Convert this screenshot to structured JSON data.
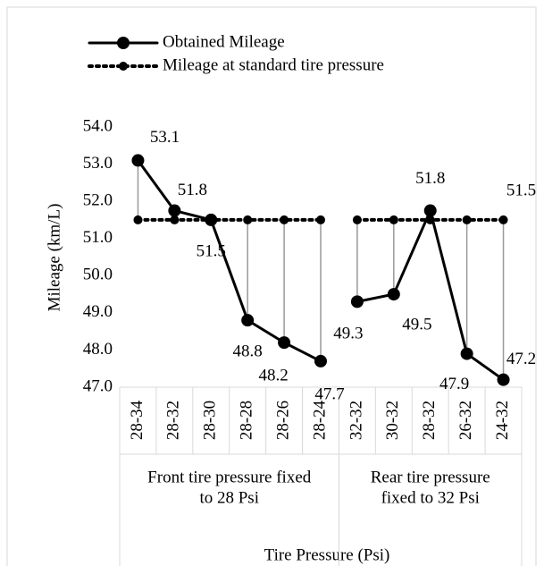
{
  "chart_data": {
    "type": "line",
    "y_label": "Mileage (km/L)",
    "x_label": "Tire Pressure (Psi)",
    "categories": [
      "28-34",
      "28-32",
      "28-30",
      "28-28",
      "28-26",
      "28-24",
      "32-32",
      "30-32",
      "28-32",
      "26-32",
      "24-32"
    ],
    "groups": [
      {
        "label": [
          "Front tire pressure  fixed",
          "to 28 Psi"
        ],
        "size": 6
      },
      {
        "label": [
          "Rear tire pressure",
          "fixed to 32 Psi"
        ],
        "size": 5
      }
    ],
    "series": [
      {
        "name": "Obtained Mileage",
        "color": "#000000",
        "style": "solid",
        "values": [
          53.1,
          51.75,
          51.5,
          48.8,
          48.2,
          47.7,
          49.3,
          49.5,
          51.75,
          47.9,
          47.2
        ],
        "value_labels": [
          "53.1",
          "51.8",
          "51.5",
          "48.8",
          "48.2",
          "47.7",
          "49.3",
          "49.5",
          "51.8",
          "47.9",
          "47.2"
        ]
      },
      {
        "name": "Mileage at standard tire pressure",
        "color": "#000000",
        "style": "dotted",
        "values": [
          51.5,
          51.5,
          51.5,
          51.5,
          51.5,
          51.5,
          51.5,
          51.5,
          51.5,
          51.5,
          51.5
        ],
        "value_labels": [
          null,
          null,
          null,
          null,
          null,
          null,
          null,
          null,
          null,
          null,
          "51.5"
        ]
      }
    ],
    "drop_lines": true,
    "ylim": [
      47,
      54
    ],
    "yticks": [
      {
        "value": 47,
        "label": "47.0"
      },
      {
        "value": 48,
        "label": "48.0"
      },
      {
        "value": 49,
        "label": "49.0"
      },
      {
        "value": 50,
        "label": "50.0"
      },
      {
        "value": 51,
        "label": "51.0"
      },
      {
        "value": 52,
        "label": "52.0"
      },
      {
        "value": 53,
        "label": "53.0"
      },
      {
        "value": 54,
        "label": "54.0"
      }
    ],
    "legend": "top-left"
  }
}
